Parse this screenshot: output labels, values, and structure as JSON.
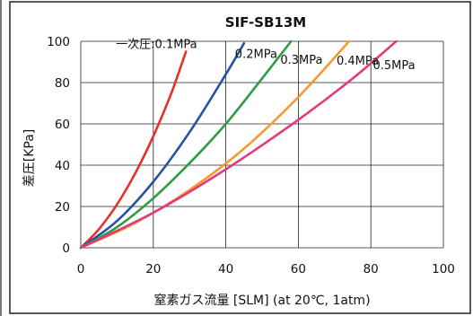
{
  "chart_data": {
    "type": "line",
    "title": "SIF-SB13M",
    "xlabel": "窒素ガス流量 [SLM] (at 20℃, 1atm)",
    "ylabel": "差圧[KPa]",
    "xlim": [
      0,
      100
    ],
    "ylim": [
      0,
      100
    ],
    "x_ticks": [
      "0",
      "20",
      "40",
      "60",
      "80",
      "100"
    ],
    "y_ticks": [
      "0",
      "20",
      "40",
      "60",
      "80",
      "100"
    ],
    "grid": true,
    "legend": "none (series labeled inline at line ends)",
    "series": [
      {
        "name": "一次圧:0.1MPa",
        "color": "#e8302a",
        "points": [
          [
            0,
            0
          ],
          [
            5,
            9
          ],
          [
            10,
            21
          ],
          [
            15,
            36
          ],
          [
            20,
            54
          ],
          [
            25,
            75
          ],
          [
            29,
            95
          ]
        ]
      },
      {
        "name": "0.2MPa",
        "color": "#2451a6",
        "points": [
          [
            0,
            0
          ],
          [
            10,
            13
          ],
          [
            20,
            32
          ],
          [
            30,
            56
          ],
          [
            40,
            84
          ],
          [
            45,
            99
          ]
        ]
      },
      {
        "name": "0.3MPa",
        "color": "#2f9a47",
        "points": [
          [
            0,
            0
          ],
          [
            10,
            10
          ],
          [
            20,
            24
          ],
          [
            30,
            41
          ],
          [
            40,
            60
          ],
          [
            50,
            82
          ],
          [
            58,
            100
          ]
        ]
      },
      {
        "name": "0.4MPa",
        "color": "#f59a2b",
        "points": [
          [
            0,
            0
          ],
          [
            15,
            12
          ],
          [
            30,
            28
          ],
          [
            45,
            48
          ],
          [
            60,
            73
          ],
          [
            74,
            100
          ]
        ]
      },
      {
        "name": "0.5MPa",
        "color": "#e33a7a",
        "points": [
          [
            0,
            0
          ],
          [
            20,
            17
          ],
          [
            40,
            38
          ],
          [
            60,
            62
          ],
          [
            75,
            82
          ],
          [
            87,
            100
          ]
        ]
      }
    ]
  }
}
